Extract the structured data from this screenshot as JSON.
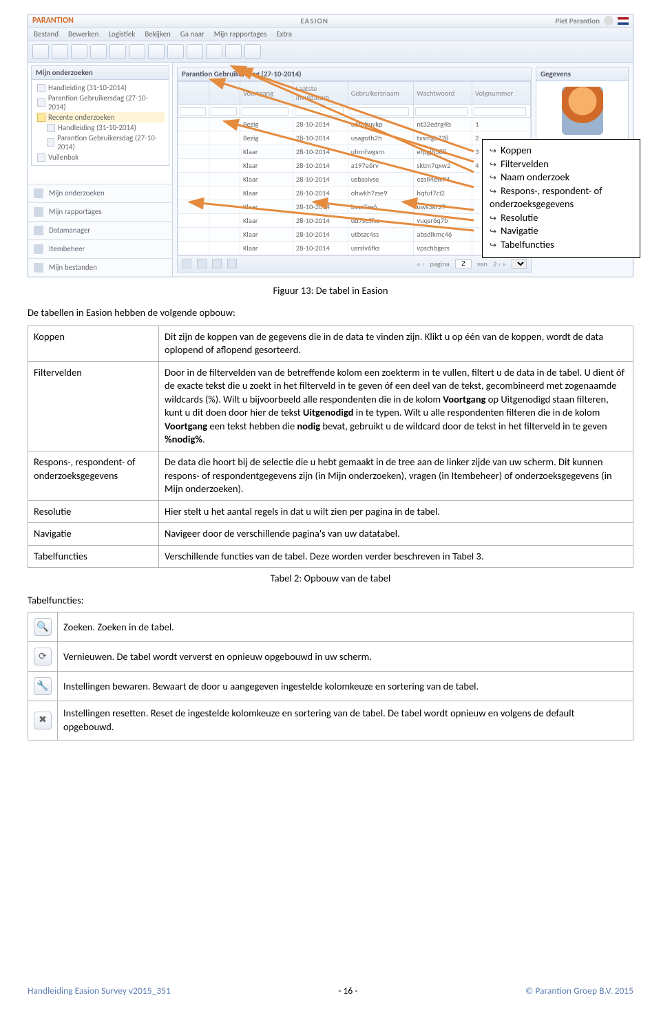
{
  "app": {
    "brand": "PARANTION",
    "center_title": "EASION",
    "user_name": "Piet Parantion",
    "menu": [
      "Bestand",
      "Bewerken",
      "Logistiek",
      "Bekijken",
      "Ga naar",
      "Mijn rapportages",
      "Extra"
    ],
    "sidebar": {
      "panel_title": "Mijn onderzoeken",
      "tree": [
        {
          "label": "Handleiding (31-10-2014)",
          "type": "leaf"
        },
        {
          "label": "Parantion Gebruikersdag (27-10-2014)",
          "type": "leaf"
        },
        {
          "label": "Recente onderzoeken",
          "type": "folder",
          "children": [
            {
              "label": "Handleiding (31-10-2014)"
            },
            {
              "label": "Parantion Gebruikersdag (27-10-2014)"
            }
          ]
        },
        {
          "label": "Vuilenbak",
          "type": "leaf"
        }
      ],
      "nav": [
        "Mijn onderzoeken",
        "Mijn rapportages",
        "Datamanager",
        "Itembeheer",
        "Mijn bestanden"
      ]
    },
    "main_panel_title": "Parantion Gebruikersdag (27-10-2014)",
    "right_panel_title": "Gegevens",
    "right_user_name": "Piet Parantion",
    "columns": [
      "",
      "",
      "Voortgang",
      "Laatste invuldatum",
      "Gebruikersnaam",
      "Wachtwoord",
      "Volgnummer"
    ],
    "rows": [
      [
        "",
        "",
        "Bezig",
        "28-10-2014",
        "u6tbbuvkp",
        "nt32edrg4b",
        "1"
      ],
      [
        "",
        "",
        "Bezig",
        "28-10-2014",
        "usagoth2h",
        "txsmgk728",
        "2"
      ],
      [
        "",
        "",
        "Klaar",
        "28-10-2014",
        "uhrnfwgsrn",
        "efpgjb588",
        "3"
      ],
      [
        "",
        "",
        "Klaar",
        "28-10-2014",
        "a197e6rv",
        "sktm7qxw2",
        "4"
      ],
      [
        "",
        "",
        "Klaar",
        "28-10-2014",
        "usbasivse",
        "ezall4ew74",
        ""
      ],
      [
        "",
        "",
        "Klaar",
        "28-10-2014",
        "ohwkh7zse9",
        "hqfuf7ci2",
        ""
      ],
      [
        "",
        "",
        "Klaar",
        "28-10-2014",
        "bvsr7ze6",
        "uws3kr27",
        ""
      ],
      [
        "",
        "",
        "Klaar",
        "28-10-2014",
        "ud7sc5fss",
        "vuqsr6q7b",
        ""
      ],
      [
        "",
        "",
        "Klaar",
        "28-10-2014",
        "utbszc4ss",
        "absdikmc46",
        ""
      ],
      [
        "",
        "",
        "Klaar",
        "28-10-2014",
        "usrslv6fks",
        "vpschbgers",
        ""
      ]
    ],
    "footer": {
      "pagina_label": "pagina",
      "page_current": "2",
      "van": "van"
    }
  },
  "callout": {
    "items": [
      "Koppen",
      "Filtervelden",
      "Naam onderzoek",
      "Respons-, respondent- of onderzoeksgegevens",
      "Resolutie",
      "Navigatie",
      "Tabelfuncties"
    ]
  },
  "figure_caption": "Figuur 13: De tabel in Easion",
  "intro_heading": "De tabellen in Easion hebben de volgende opbouw:",
  "opbouw": [
    {
      "term": "Koppen",
      "desc": "Dit zijn de koppen van de gegevens die in de data te vinden zijn. Klikt u op één van de koppen, wordt de data oplopend of aflopend gesorteerd.",
      "rich": false
    },
    {
      "term": "Filtervelden",
      "desc_html": "Door in de filtervelden van de betreffende kolom een zoekterm in te vullen, filtert u de data in de tabel. U dient óf de exacte tekst die u zoekt in het filterveld in te geven óf een deel van de tekst, gecombineerd met zogenaamde wildcards (%). Wilt u bijvoorbeeld alle respondenten die in de kolom <b>Voortgang</b> op Uitgenodigd staan filteren, kunt u dit doen door hier de tekst <b>Uitgenodigd</b> in te typen. Wilt u alle respondenten filteren die in de kolom <b>Voortgang</b> een tekst hebben die <b>nodig</b> bevat, gebruikt u de wildcard door de tekst in het filterveld in te geven <b>%nodig%</b>.",
      "rich": true
    },
    {
      "term": "Respons-, respondent- of onderzoeksgegevens",
      "desc": "De data die hoort bij de selectie die u hebt gemaakt in de tree aan de linker zijde van uw scherm. Dit kunnen respons- of respondentgegevens zijn (in Mijn onderzoeken), vragen (in Itembeheer) of onderzoeksgegevens (in Mijn onderzoeken).",
      "rich": false
    },
    {
      "term": "Resolutie",
      "desc": "Hier stelt u het aantal regels in dat u wilt zien per pagina in de tabel.",
      "rich": false
    },
    {
      "term": "Navigatie",
      "desc": "Navigeer door de verschillende pagina's van uw datatabel.",
      "rich": false
    },
    {
      "term": "Tabelfuncties",
      "desc_html": "Verschillende functies van de tabel. Deze worden verder beschreven in <span style='font-family:sans-serif;font-size:13px;'>Tabel 3</span>.",
      "rich": true
    }
  ],
  "table2_caption": "Tabel 2: Opbouw van de tabel",
  "tabelfuncties_heading": "Tabelfuncties:",
  "tabelfuncties_rows": [
    {
      "icon": "search",
      "glyph": "🔍",
      "desc": "Zoeken. Zoeken in de tabel."
    },
    {
      "icon": "refresh",
      "glyph": "⟳",
      "desc": "Vernieuwen. De tabel wordt ververst en opnieuw opgebouwd in uw scherm."
    },
    {
      "icon": "wrench",
      "glyph": "🔧",
      "desc": "Instellingen bewaren. Bewaart de door u aangegeven ingestelde kolomkeuze en sortering van de tabel."
    },
    {
      "icon": "close",
      "glyph": "✖",
      "desc": "Instellingen resetten. Reset de ingestelde kolomkeuze en sortering van de tabel. De tabel wordt opnieuw en volgens de default opgebouwd."
    }
  ],
  "footer": {
    "left": "Handleiding Easion Survey v2015_351",
    "center": "- 16 -",
    "right": "© Parantion Groep B.V. 2015"
  },
  "arrows_color": "#e58b3e"
}
